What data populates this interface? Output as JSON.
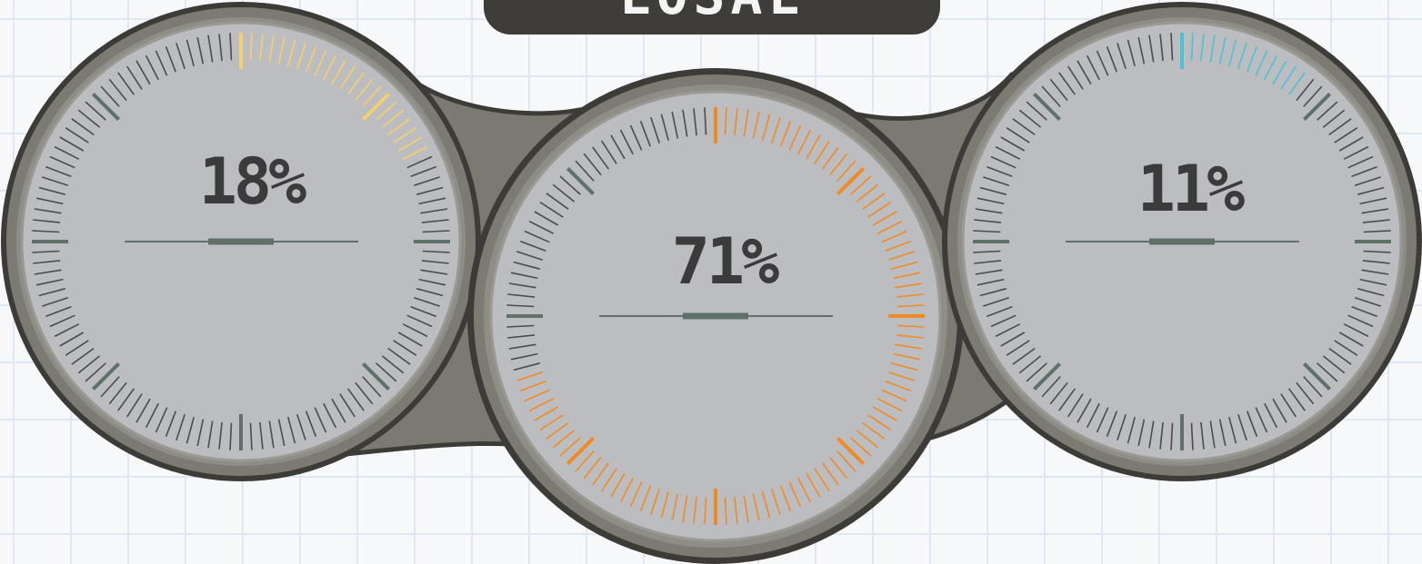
{
  "header": {
    "title": "LOSAL"
  },
  "gauges": [
    {
      "id": "left",
      "value_label": "18%",
      "percent": 18,
      "accent": "#f6cf6f"
    },
    {
      "id": "center",
      "value_label": "71%",
      "percent": 71,
      "accent": "#f08a24"
    },
    {
      "id": "right",
      "value_label": "11%",
      "percent": 11,
      "accent": "#4cc1d4"
    }
  ],
  "colors": {
    "frame": "#7a7a72",
    "frame_outline": "#3c3b37",
    "bezel": "#918f86",
    "dial": "#bcbdc1",
    "tick": "#4a4c4c",
    "major_tick": "#5e7068",
    "title_bg": "#3f3d39"
  }
}
